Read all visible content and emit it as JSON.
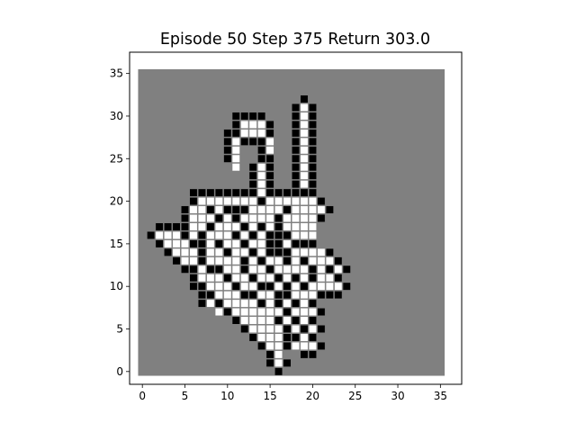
{
  "title": "Episode 50 Step 375 Return 303.0",
  "axes": {
    "xticks": [
      0,
      5,
      10,
      15,
      20,
      25,
      30,
      35
    ],
    "yticks": [
      0,
      5,
      10,
      15,
      20,
      25,
      30,
      35
    ],
    "xlim": [
      -1.5,
      37.5
    ],
    "ylim": [
      -1.5,
      37.5
    ]
  },
  "colors": {
    "background": "#808080",
    "wall": "#000000",
    "open": "#ffffff",
    "grid_line": "#808080",
    "frame": "#000000"
  },
  "grid": {
    "size": 36,
    "black": [
      [
        16,
        0
      ],
      [
        15,
        1
      ],
      [
        17,
        1
      ],
      [
        15,
        2
      ],
      [
        19,
        2
      ],
      [
        20,
        2
      ],
      [
        14,
        3
      ],
      [
        17,
        3
      ],
      [
        21,
        3
      ],
      [
        13,
        4
      ],
      [
        17,
        4
      ],
      [
        18,
        4
      ],
      [
        20,
        4
      ],
      [
        12,
        5
      ],
      [
        17,
        5
      ],
      [
        19,
        5
      ],
      [
        21,
        5
      ],
      [
        11,
        6
      ],
      [
        16,
        6
      ],
      [
        18,
        6
      ],
      [
        20,
        6
      ],
      [
        10,
        7
      ],
      [
        17,
        7
      ],
      [
        21,
        7
      ],
      [
        7,
        8
      ],
      [
        9,
        8
      ],
      [
        14,
        8
      ],
      [
        16,
        8
      ],
      [
        18,
        8
      ],
      [
        20,
        8
      ],
      [
        7,
        9
      ],
      [
        8,
        9
      ],
      [
        12,
        9
      ],
      [
        13,
        9
      ],
      [
        16,
        9
      ],
      [
        17,
        9
      ],
      [
        21,
        9
      ],
      [
        22,
        9
      ],
      [
        23,
        9
      ],
      [
        6,
        10
      ],
      [
        7,
        10
      ],
      [
        11,
        10
      ],
      [
        14,
        10
      ],
      [
        15,
        10
      ],
      [
        17,
        10
      ],
      [
        19,
        10
      ],
      [
        24,
        10
      ],
      [
        6,
        11
      ],
      [
        10,
        11
      ],
      [
        13,
        11
      ],
      [
        16,
        11
      ],
      [
        18,
        11
      ],
      [
        20,
        11
      ],
      [
        23,
        11
      ],
      [
        5,
        12
      ],
      [
        6,
        12
      ],
      [
        8,
        12
      ],
      [
        9,
        12
      ],
      [
        12,
        12
      ],
      [
        15,
        12
      ],
      [
        20,
        12
      ],
      [
        22,
        12
      ],
      [
        24,
        12
      ],
      [
        4,
        13
      ],
      [
        7,
        13
      ],
      [
        12,
        13
      ],
      [
        14,
        13
      ],
      [
        17,
        13
      ],
      [
        19,
        13
      ],
      [
        23,
        13
      ],
      [
        3,
        14
      ],
      [
        7,
        14
      ],
      [
        10,
        14
      ],
      [
        13,
        14
      ],
      [
        15,
        14
      ],
      [
        16,
        14
      ],
      [
        17,
        14
      ],
      [
        22,
        14
      ],
      [
        2,
        15
      ],
      [
        6,
        15
      ],
      [
        7,
        15
      ],
      [
        9,
        15
      ],
      [
        12,
        15
      ],
      [
        15,
        15
      ],
      [
        16,
        15
      ],
      [
        18,
        15
      ],
      [
        19,
        15
      ],
      [
        20,
        15
      ],
      [
        1,
        16
      ],
      [
        5,
        16
      ],
      [
        7,
        16
      ],
      [
        11,
        16
      ],
      [
        13,
        16
      ],
      [
        15,
        16
      ],
      [
        16,
        16
      ],
      [
        17,
        16
      ],
      [
        2,
        17
      ],
      [
        3,
        17
      ],
      [
        4,
        17
      ],
      [
        5,
        17
      ],
      [
        8,
        17
      ],
      [
        12,
        17
      ],
      [
        14,
        17
      ],
      [
        16,
        17
      ],
      [
        5,
        18
      ],
      [
        9,
        18
      ],
      [
        11,
        18
      ],
      [
        16,
        18
      ],
      [
        21,
        18
      ],
      [
        5,
        19
      ],
      [
        8,
        19
      ],
      [
        10,
        19
      ],
      [
        11,
        19
      ],
      [
        12,
        19
      ],
      [
        17,
        19
      ],
      [
        22,
        19
      ],
      [
        6,
        20
      ],
      [
        14,
        20
      ],
      [
        21,
        20
      ],
      [
        6,
        21
      ],
      [
        7,
        21
      ],
      [
        8,
        21
      ],
      [
        9,
        21
      ],
      [
        10,
        21
      ],
      [
        11,
        21
      ],
      [
        12,
        21
      ],
      [
        13,
        21
      ],
      [
        15,
        21
      ],
      [
        16,
        21
      ],
      [
        17,
        21
      ],
      [
        18,
        21
      ],
      [
        19,
        21
      ],
      [
        20,
        21
      ],
      [
        13,
        22
      ],
      [
        15,
        22
      ],
      [
        18,
        22
      ],
      [
        20,
        22
      ],
      [
        13,
        23
      ],
      [
        15,
        23
      ],
      [
        18,
        23
      ],
      [
        20,
        23
      ],
      [
        13,
        24
      ],
      [
        15,
        24
      ],
      [
        18,
        24
      ],
      [
        20,
        24
      ],
      [
        10,
        25
      ],
      [
        14,
        25
      ],
      [
        15,
        25
      ],
      [
        18,
        25
      ],
      [
        20,
        25
      ],
      [
        10,
        26
      ],
      [
        14,
        26
      ],
      [
        18,
        26
      ],
      [
        20,
        26
      ],
      [
        10,
        27
      ],
      [
        12,
        27
      ],
      [
        13,
        27
      ],
      [
        14,
        27
      ],
      [
        18,
        27
      ],
      [
        20,
        27
      ],
      [
        10,
        28
      ],
      [
        11,
        28
      ],
      [
        15,
        28
      ],
      [
        18,
        28
      ],
      [
        20,
        28
      ],
      [
        11,
        29
      ],
      [
        15,
        29
      ],
      [
        18,
        29
      ],
      [
        20,
        29
      ],
      [
        11,
        30
      ],
      [
        12,
        30
      ],
      [
        13,
        30
      ],
      [
        14,
        30
      ],
      [
        18,
        30
      ],
      [
        20,
        30
      ],
      [
        18,
        31
      ],
      [
        20,
        31
      ],
      [
        19,
        32
      ]
    ],
    "white": [
      [
        16,
        1
      ],
      [
        16,
        2
      ],
      [
        15,
        3
      ],
      [
        16,
        3
      ],
      [
        18,
        3
      ],
      [
        19,
        3
      ],
      [
        20,
        3
      ],
      [
        14,
        4
      ],
      [
        15,
        4
      ],
      [
        16,
        4
      ],
      [
        19,
        4
      ],
      [
        13,
        5
      ],
      [
        14,
        5
      ],
      [
        15,
        5
      ],
      [
        16,
        5
      ],
      [
        18,
        5
      ],
      [
        20,
        5
      ],
      [
        12,
        6
      ],
      [
        13,
        6
      ],
      [
        14,
        6
      ],
      [
        15,
        6
      ],
      [
        17,
        6
      ],
      [
        19,
        6
      ],
      [
        9,
        7
      ],
      [
        11,
        7
      ],
      [
        12,
        7
      ],
      [
        13,
        7
      ],
      [
        14,
        7
      ],
      [
        15,
        7
      ],
      [
        16,
        7
      ],
      [
        18,
        7
      ],
      [
        19,
        7
      ],
      [
        20,
        7
      ],
      [
        8,
        8
      ],
      [
        10,
        8
      ],
      [
        11,
        8
      ],
      [
        12,
        8
      ],
      [
        13,
        8
      ],
      [
        15,
        8
      ],
      [
        17,
        8
      ],
      [
        19,
        8
      ],
      [
        9,
        9
      ],
      [
        10,
        9
      ],
      [
        11,
        9
      ],
      [
        14,
        9
      ],
      [
        15,
        9
      ],
      [
        18,
        9
      ],
      [
        19,
        9
      ],
      [
        20,
        9
      ],
      [
        8,
        10
      ],
      [
        9,
        10
      ],
      [
        10,
        10
      ],
      [
        12,
        10
      ],
      [
        13,
        10
      ],
      [
        16,
        10
      ],
      [
        18,
        10
      ],
      [
        20,
        10
      ],
      [
        21,
        10
      ],
      [
        22,
        10
      ],
      [
        23,
        10
      ],
      [
        7,
        11
      ],
      [
        8,
        11
      ],
      [
        9,
        11
      ],
      [
        11,
        11
      ],
      [
        12,
        11
      ],
      [
        14,
        11
      ],
      [
        15,
        11
      ],
      [
        17,
        11
      ],
      [
        19,
        11
      ],
      [
        21,
        11
      ],
      [
        22,
        11
      ],
      [
        7,
        12
      ],
      [
        10,
        12
      ],
      [
        11,
        12
      ],
      [
        13,
        12
      ],
      [
        14,
        12
      ],
      [
        16,
        12
      ],
      [
        17,
        12
      ],
      [
        18,
        12
      ],
      [
        19,
        12
      ],
      [
        21,
        12
      ],
      [
        23,
        12
      ],
      [
        5,
        13
      ],
      [
        6,
        13
      ],
      [
        8,
        13
      ],
      [
        9,
        13
      ],
      [
        10,
        13
      ],
      [
        11,
        13
      ],
      [
        13,
        13
      ],
      [
        15,
        13
      ],
      [
        16,
        13
      ],
      [
        18,
        13
      ],
      [
        20,
        13
      ],
      [
        21,
        13
      ],
      [
        22,
        13
      ],
      [
        4,
        14
      ],
      [
        5,
        14
      ],
      [
        6,
        14
      ],
      [
        8,
        14
      ],
      [
        9,
        14
      ],
      [
        11,
        14
      ],
      [
        12,
        14
      ],
      [
        14,
        14
      ],
      [
        18,
        14
      ],
      [
        19,
        14
      ],
      [
        20,
        14
      ],
      [
        21,
        14
      ],
      [
        3,
        15
      ],
      [
        4,
        15
      ],
      [
        5,
        15
      ],
      [
        8,
        15
      ],
      [
        10,
        15
      ],
      [
        11,
        15
      ],
      [
        13,
        15
      ],
      [
        14,
        15
      ],
      [
        17,
        15
      ],
      [
        2,
        16
      ],
      [
        3,
        16
      ],
      [
        4,
        16
      ],
      [
        6,
        16
      ],
      [
        8,
        16
      ],
      [
        9,
        16
      ],
      [
        10,
        16
      ],
      [
        12,
        16
      ],
      [
        14,
        16
      ],
      [
        18,
        16
      ],
      [
        19,
        16
      ],
      [
        20,
        16
      ],
      [
        6,
        17
      ],
      [
        7,
        17
      ],
      [
        9,
        17
      ],
      [
        10,
        17
      ],
      [
        11,
        17
      ],
      [
        13,
        17
      ],
      [
        15,
        17
      ],
      [
        17,
        17
      ],
      [
        18,
        17
      ],
      [
        19,
        17
      ],
      [
        20,
        17
      ],
      [
        6,
        18
      ],
      [
        7,
        18
      ],
      [
        8,
        18
      ],
      [
        10,
        18
      ],
      [
        12,
        18
      ],
      [
        13,
        18
      ],
      [
        14,
        18
      ],
      [
        15,
        18
      ],
      [
        17,
        18
      ],
      [
        18,
        18
      ],
      [
        19,
        18
      ],
      [
        20,
        18
      ],
      [
        6,
        19
      ],
      [
        7,
        19
      ],
      [
        9,
        19
      ],
      [
        13,
        19
      ],
      [
        14,
        19
      ],
      [
        15,
        19
      ],
      [
        16,
        19
      ],
      [
        18,
        19
      ],
      [
        19,
        19
      ],
      [
        20,
        19
      ],
      [
        21,
        19
      ],
      [
        7,
        20
      ],
      [
        8,
        20
      ],
      [
        9,
        20
      ],
      [
        10,
        20
      ],
      [
        11,
        20
      ],
      [
        12,
        20
      ],
      [
        13,
        20
      ],
      [
        15,
        20
      ],
      [
        16,
        20
      ],
      [
        17,
        20
      ],
      [
        18,
        20
      ],
      [
        19,
        20
      ],
      [
        20,
        20
      ],
      [
        14,
        21
      ],
      [
        14,
        22
      ],
      [
        19,
        22
      ],
      [
        14,
        23
      ],
      [
        19,
        23
      ],
      [
        11,
        24
      ],
      [
        14,
        24
      ],
      [
        19,
        24
      ],
      [
        11,
        25
      ],
      [
        19,
        25
      ],
      [
        11,
        26
      ],
      [
        15,
        26
      ],
      [
        19,
        26
      ],
      [
        11,
        27
      ],
      [
        15,
        27
      ],
      [
        19,
        27
      ],
      [
        12,
        28
      ],
      [
        13,
        28
      ],
      [
        14,
        28
      ],
      [
        19,
        28
      ],
      [
        12,
        29
      ],
      [
        13,
        29
      ],
      [
        14,
        29
      ],
      [
        19,
        29
      ],
      [
        19,
        30
      ],
      [
        19,
        31
      ]
    ]
  }
}
